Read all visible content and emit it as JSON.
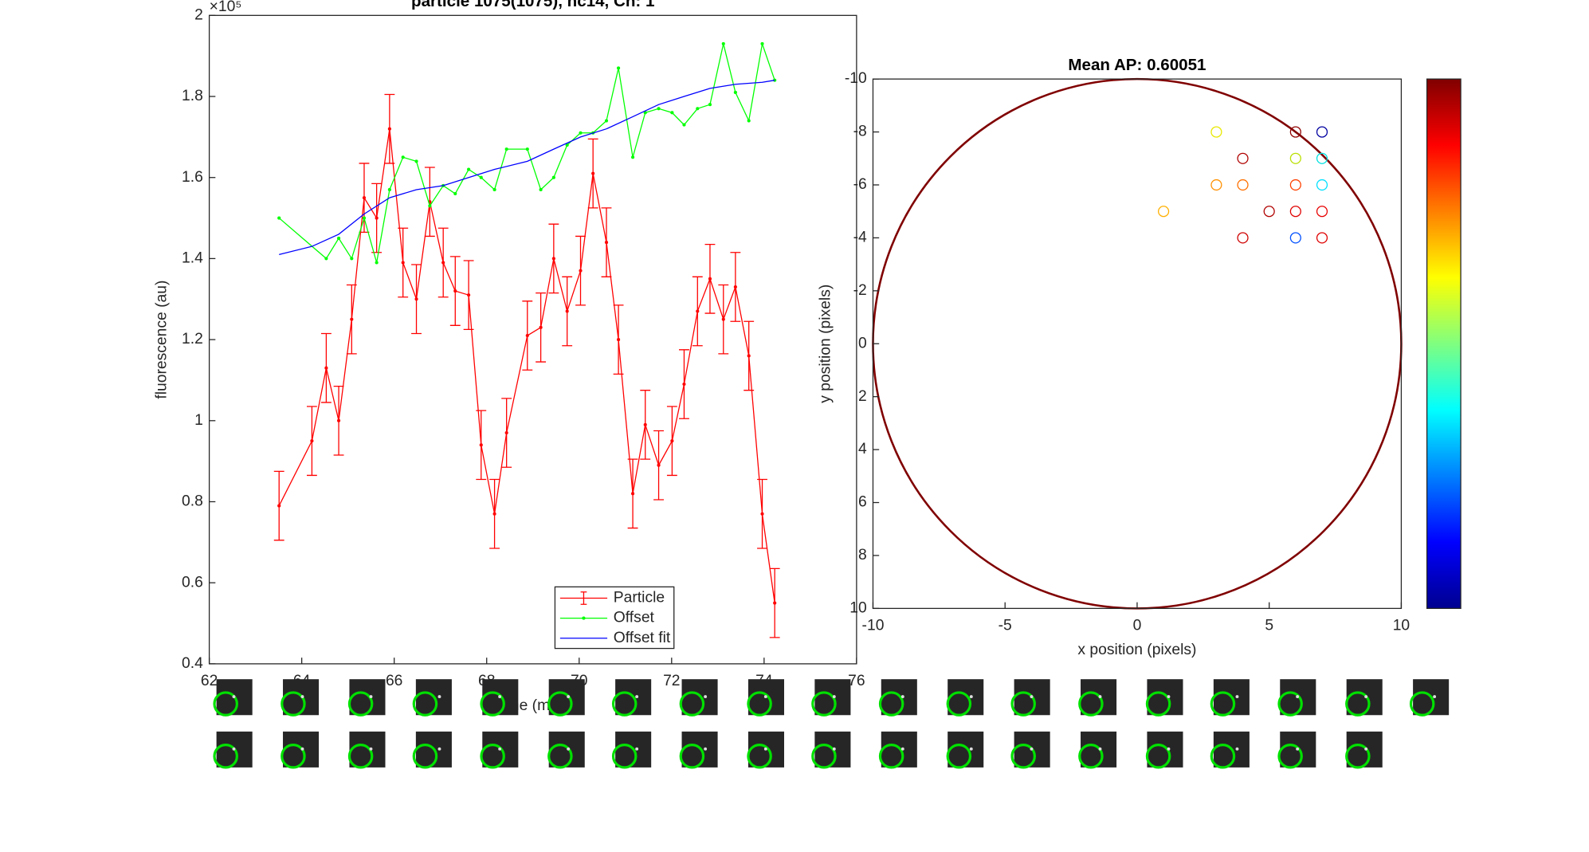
{
  "chart_data": [
    {
      "type": "line",
      "title": "particle 1075(1075), nc14, Ch: 1",
      "xlabel": "time (min)",
      "ylabel": "fluorescence (au)",
      "y_exponent": "×10⁵",
      "xlim": [
        62,
        76
      ],
      "xticks": [
        62,
        64,
        66,
        68,
        70,
        72,
        74,
        76
      ],
      "ylim": [
        0.4,
        2
      ],
      "yticks": [
        0.4,
        0.6,
        0.8,
        1,
        1.2,
        1.4,
        1.6,
        1.8,
        2
      ],
      "legend": "lower center",
      "series": [
        {
          "name": "Particle",
          "color": "#ff0000",
          "x": [
            63.51,
            64.22,
            64.53,
            64.8,
            65.08,
            65.35,
            65.62,
            65.9,
            66.19,
            66.48,
            66.77,
            67.06,
            67.32,
            67.61,
            67.88,
            68.17,
            68.43,
            68.88,
            69.17,
            69.45,
            69.74,
            70.03,
            70.3,
            70.59,
            70.85,
            71.16,
            71.43,
            71.72,
            72.01,
            72.27,
            72.56,
            72.83,
            73.12,
            73.38,
            73.67,
            73.96,
            74.23
          ],
          "values": [
            0.79,
            0.95,
            1.13,
            1.0,
            1.25,
            1.55,
            1.5,
            1.72,
            1.39,
            1.3,
            1.54,
            1.39,
            1.32,
            1.31,
            0.94,
            0.77,
            0.97,
            1.21,
            1.23,
            1.4,
            1.27,
            1.37,
            1.61,
            1.44,
            1.2,
            0.82,
            0.99,
            0.89,
            0.95,
            1.09,
            1.27,
            1.35,
            1.25,
            1.33,
            1.16,
            0.77,
            0.55
          ],
          "errors": [
            0.085,
            0.085,
            0.085,
            0.085,
            0.085,
            0.085,
            0.085,
            0.085,
            0.085,
            0.085,
            0.085,
            0.085,
            0.085,
            0.085,
            0.085,
            0.085,
            0.085,
            0.085,
            0.085,
            0.085,
            0.085,
            0.085,
            0.085,
            0.085,
            0.085,
            0.085,
            0.085,
            0.085,
            0.085,
            0.085,
            0.085,
            0.085,
            0.085,
            0.085,
            0.085,
            0.085,
            0.085
          ]
        },
        {
          "name": "Offset",
          "color": "#00ff00",
          "x": [
            63.51,
            64.53,
            64.8,
            65.08,
            65.35,
            65.62,
            65.9,
            66.19,
            66.48,
            66.77,
            67.06,
            67.32,
            67.61,
            67.88,
            68.17,
            68.43,
            68.88,
            69.17,
            69.45,
            69.74,
            70.03,
            70.3,
            70.59,
            70.85,
            71.16,
            71.43,
            71.72,
            72.01,
            72.27,
            72.56,
            72.83,
            73.12,
            73.38,
            73.67,
            73.96,
            74.23
          ],
          "values": [
            1.5,
            1.4,
            1.45,
            1.4,
            1.5,
            1.39,
            1.57,
            1.65,
            1.64,
            1.53,
            1.58,
            1.56,
            1.62,
            1.6,
            1.57,
            1.67,
            1.67,
            1.57,
            1.6,
            1.68,
            1.71,
            1.71,
            1.74,
            1.87,
            1.65,
            1.76,
            1.77,
            1.76,
            1.73,
            1.77,
            1.78,
            1.93,
            1.81,
            1.74,
            1.93,
            1.84
          ]
        },
        {
          "name": "Offset fit",
          "color": "#0000ff",
          "x": [
            63.51,
            64.22,
            64.8,
            65.35,
            65.9,
            66.48,
            67.06,
            67.61,
            68.17,
            68.88,
            69.45,
            70.03,
            70.59,
            71.16,
            71.72,
            72.27,
            72.83,
            73.38,
            73.96,
            74.23
          ],
          "values": [
            1.41,
            1.43,
            1.46,
            1.51,
            1.55,
            1.57,
            1.58,
            1.6,
            1.62,
            1.64,
            1.67,
            1.7,
            1.72,
            1.75,
            1.78,
            1.8,
            1.82,
            1.83,
            1.835,
            1.84
          ]
        }
      ]
    },
    {
      "type": "scatter",
      "title": "Mean AP: 0.60051",
      "xlabel": "x position (pixels)",
      "ylabel": "y position (pixels)",
      "xlim": [
        -10,
        10
      ],
      "xticks": [
        -10,
        -5,
        0,
        5,
        10
      ],
      "ylim": [
        -10,
        10
      ],
      "yticks": [
        -10,
        -8,
        -6,
        -4,
        -2,
        0,
        2,
        4,
        6,
        8,
        10
      ],
      "y_direction": "reverse",
      "colorbar": true,
      "x": [
        3,
        6,
        7,
        4,
        6,
        7,
        3,
        4,
        6,
        7,
        1,
        5,
        6,
        7,
        4,
        6,
        7
      ],
      "values": [
        -8,
        -8,
        -8,
        -7,
        -7,
        -7,
        -6,
        -6,
        -6,
        -6,
        -5,
        -5,
        -5,
        -5,
        -4,
        -4,
        -4
      ],
      "colors": [
        "#e8e800",
        "#900000",
        "#0000a0",
        "#b00000",
        "#b8e000",
        "#00e0e0",
        "#ff9000",
        "#ff7000",
        "#ff4000",
        "#00e0ff",
        "#ffb000",
        "#b00000",
        "#e00000",
        "#e80000",
        "#d00000",
        "#0050ff",
        "#e00000"
      ]
    }
  ]
}
